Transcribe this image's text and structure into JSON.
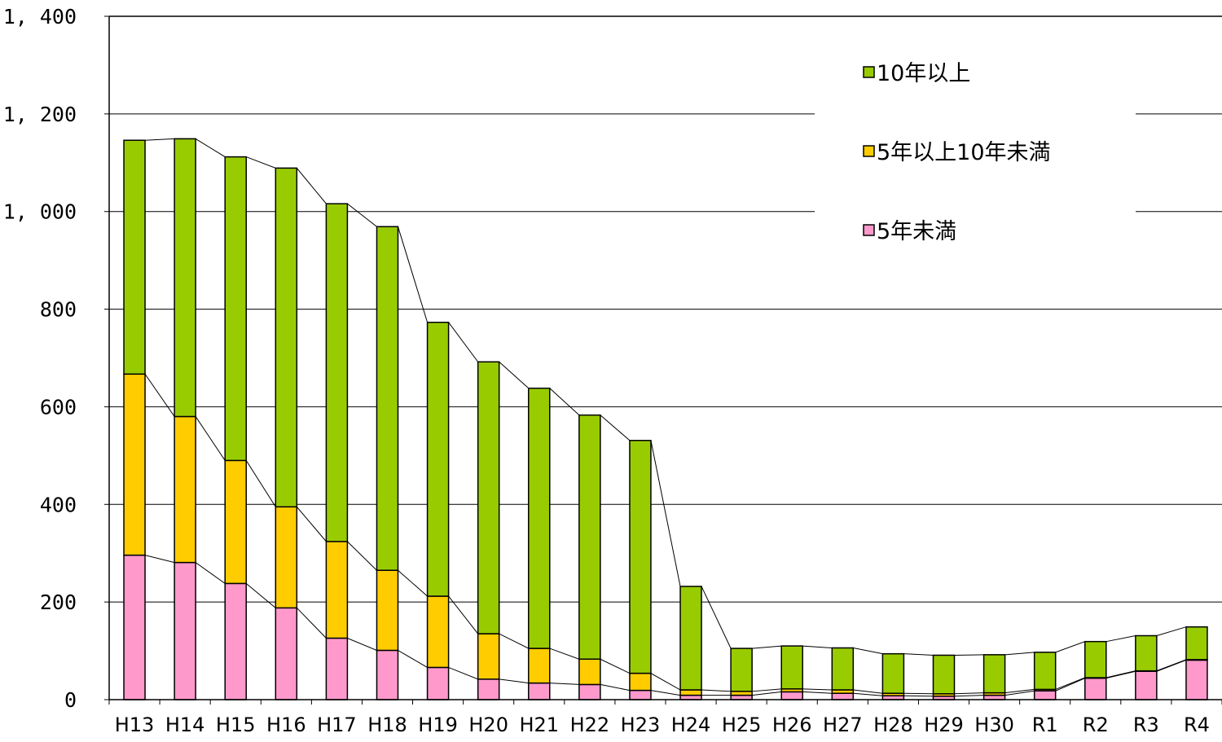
{
  "chart_data": {
    "type": "bar",
    "stacked": true,
    "categories": [
      "H13",
      "H14",
      "H15",
      "H16",
      "H17",
      "H18",
      "H19",
      "H20",
      "H21",
      "H22",
      "H23",
      "H24",
      "H25",
      "H26",
      "H27",
      "H28",
      "H29",
      "H30",
      "R1",
      "R2",
      "R3",
      "R4"
    ],
    "series": [
      {
        "name": "5年未満",
        "color": "#ff99cc",
        "values": [
          296,
          281,
          238,
          188,
          126,
          101,
          66,
          42,
          34,
          31,
          19,
          9,
          9,
          16,
          13,
          8,
          7,
          9,
          18,
          44,
          58,
          81
        ]
      },
      {
        "name": "5年以上10年未満",
        "color": "#ffcc00",
        "values": [
          371,
          299,
          252,
          207,
          198,
          164,
          146,
          93,
          71,
          52,
          35,
          11,
          8,
          6,
          7,
          5,
          5,
          5,
          3,
          1,
          1,
          1
        ]
      },
      {
        "name": "10年以上",
        "color": "#99cc00",
        "values": [
          479,
          569,
          622,
          694,
          692,
          704,
          561,
          557,
          533,
          500,
          477,
          212,
          88,
          88,
          86,
          81,
          79,
          78,
          76,
          74,
          72,
          67
        ]
      }
    ],
    "ylim": [
      0,
      1400
    ],
    "yticks": [
      "0",
      "200",
      "400",
      "600",
      "800",
      "1, 000",
      "1, 200",
      "1, 400"
    ],
    "grid": true,
    "connector_lines": true,
    "legend_position": "top-right",
    "legend_order": [
      "10年以上",
      "5年以上10年未満",
      "5年未満"
    ]
  }
}
